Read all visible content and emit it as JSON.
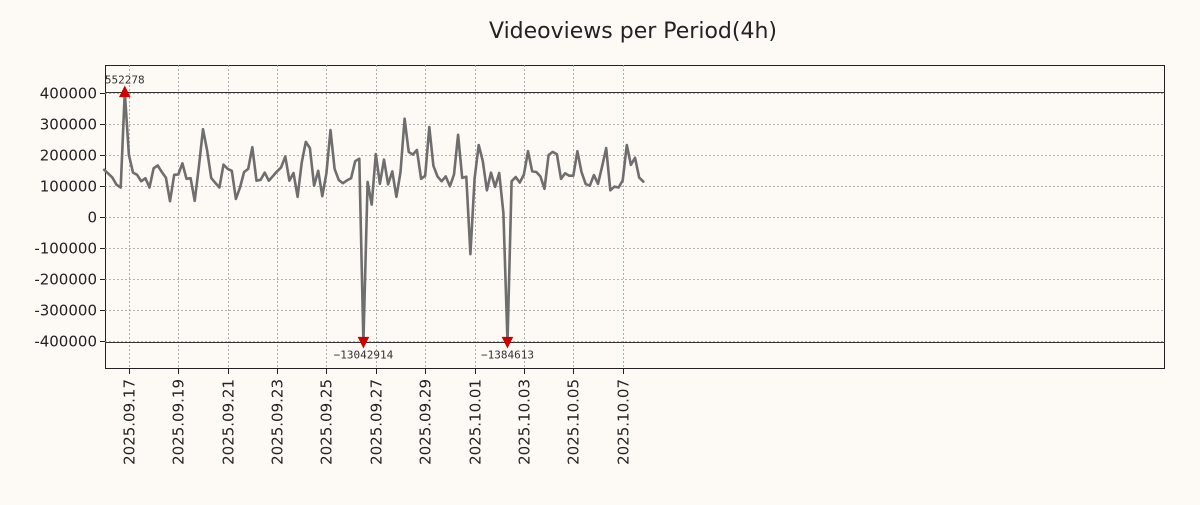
{
  "chart_data": {
    "type": "line",
    "title": "Videoviews per Period(4h)",
    "xlabel": "",
    "ylabel": "",
    "ylim": [
      -490000,
      490000
    ],
    "y_ticks": [
      400000,
      300000,
      200000,
      100000,
      0,
      -100000,
      -200000,
      -300000,
      -400000
    ],
    "y_tick_labels": [
      "400000",
      "300000",
      "200000",
      "100000",
      "0",
      "-100000",
      "-200000",
      "-300000",
      "-400000"
    ],
    "x_start": "2025.09.16 00:00",
    "x_step_hours": 4,
    "x_ticks": [
      "2025.09.17",
      "2025.09.19",
      "2025.09.21",
      "2025.09.23",
      "2025.09.25",
      "2025.09.27",
      "2025.09.29",
      "2025.10.01",
      "2025.10.03",
      "2025.10.05",
      "2025.10.07"
    ],
    "clip_lines": [
      404000,
      -404000
    ],
    "grid": true,
    "series": [
      {
        "name": "Videoviews",
        "color": "#6e6e6e",
        "values": [
          152000,
          140000,
          127000,
          104000,
          95000,
          404000,
          200000,
          143000,
          136000,
          115000,
          125000,
          95000,
          157000,
          166000,
          145000,
          127000,
          51000,
          136000,
          137000,
          173000,
          123000,
          125000,
          52000,
          160000,
          283000,
          215000,
          126000,
          110000,
          95000,
          169000,
          155000,
          149000,
          58000,
          95000,
          145000,
          155000,
          225000,
          117000,
          120000,
          143000,
          117000,
          132000,
          147000,
          160000,
          195000,
          117000,
          142000,
          65000,
          175000,
          242000,
          222000,
          101000,
          149000,
          67000,
          141000,
          280000,
          155000,
          119000,
          109000,
          118000,
          125000,
          180000,
          188000,
          -404000,
          113000,
          40000,
          203000,
          107000,
          185000,
          105000,
          147000,
          65000,
          145000,
          317000,
          210000,
          201000,
          216000,
          123000,
          133000,
          290000,
          165000,
          131000,
          115000,
          131000,
          99000,
          137000,
          265000,
          126000,
          130000,
          -120000,
          124000,
          232000,
          180000,
          86000,
          143000,
          97000,
          142000,
          13000,
          -404000,
          115000,
          129000,
          111000,
          137000,
          212000,
          147000,
          145000,
          131000,
          91000,
          200000,
          210000,
          202000,
          123000,
          141000,
          133000,
          133000,
          212000,
          145000,
          106000,
          101000,
          135000,
          107000,
          163000,
          222000,
          86000,
          98000,
          95000,
          118000,
          232000,
          168000,
          191000,
          127000,
          114000
        ]
      }
    ],
    "markers": [
      {
        "index": 5,
        "plot_value": 404000,
        "label": "552278",
        "direction": "up",
        "color": "#cc0000"
      },
      {
        "index": 63,
        "plot_value": -404000,
        "label": "−13042914",
        "direction": "down",
        "color": "#cc0000"
      },
      {
        "index": 98,
        "plot_value": -404000,
        "label": "−1384613",
        "direction": "down",
        "color": "#cc0000"
      }
    ]
  }
}
